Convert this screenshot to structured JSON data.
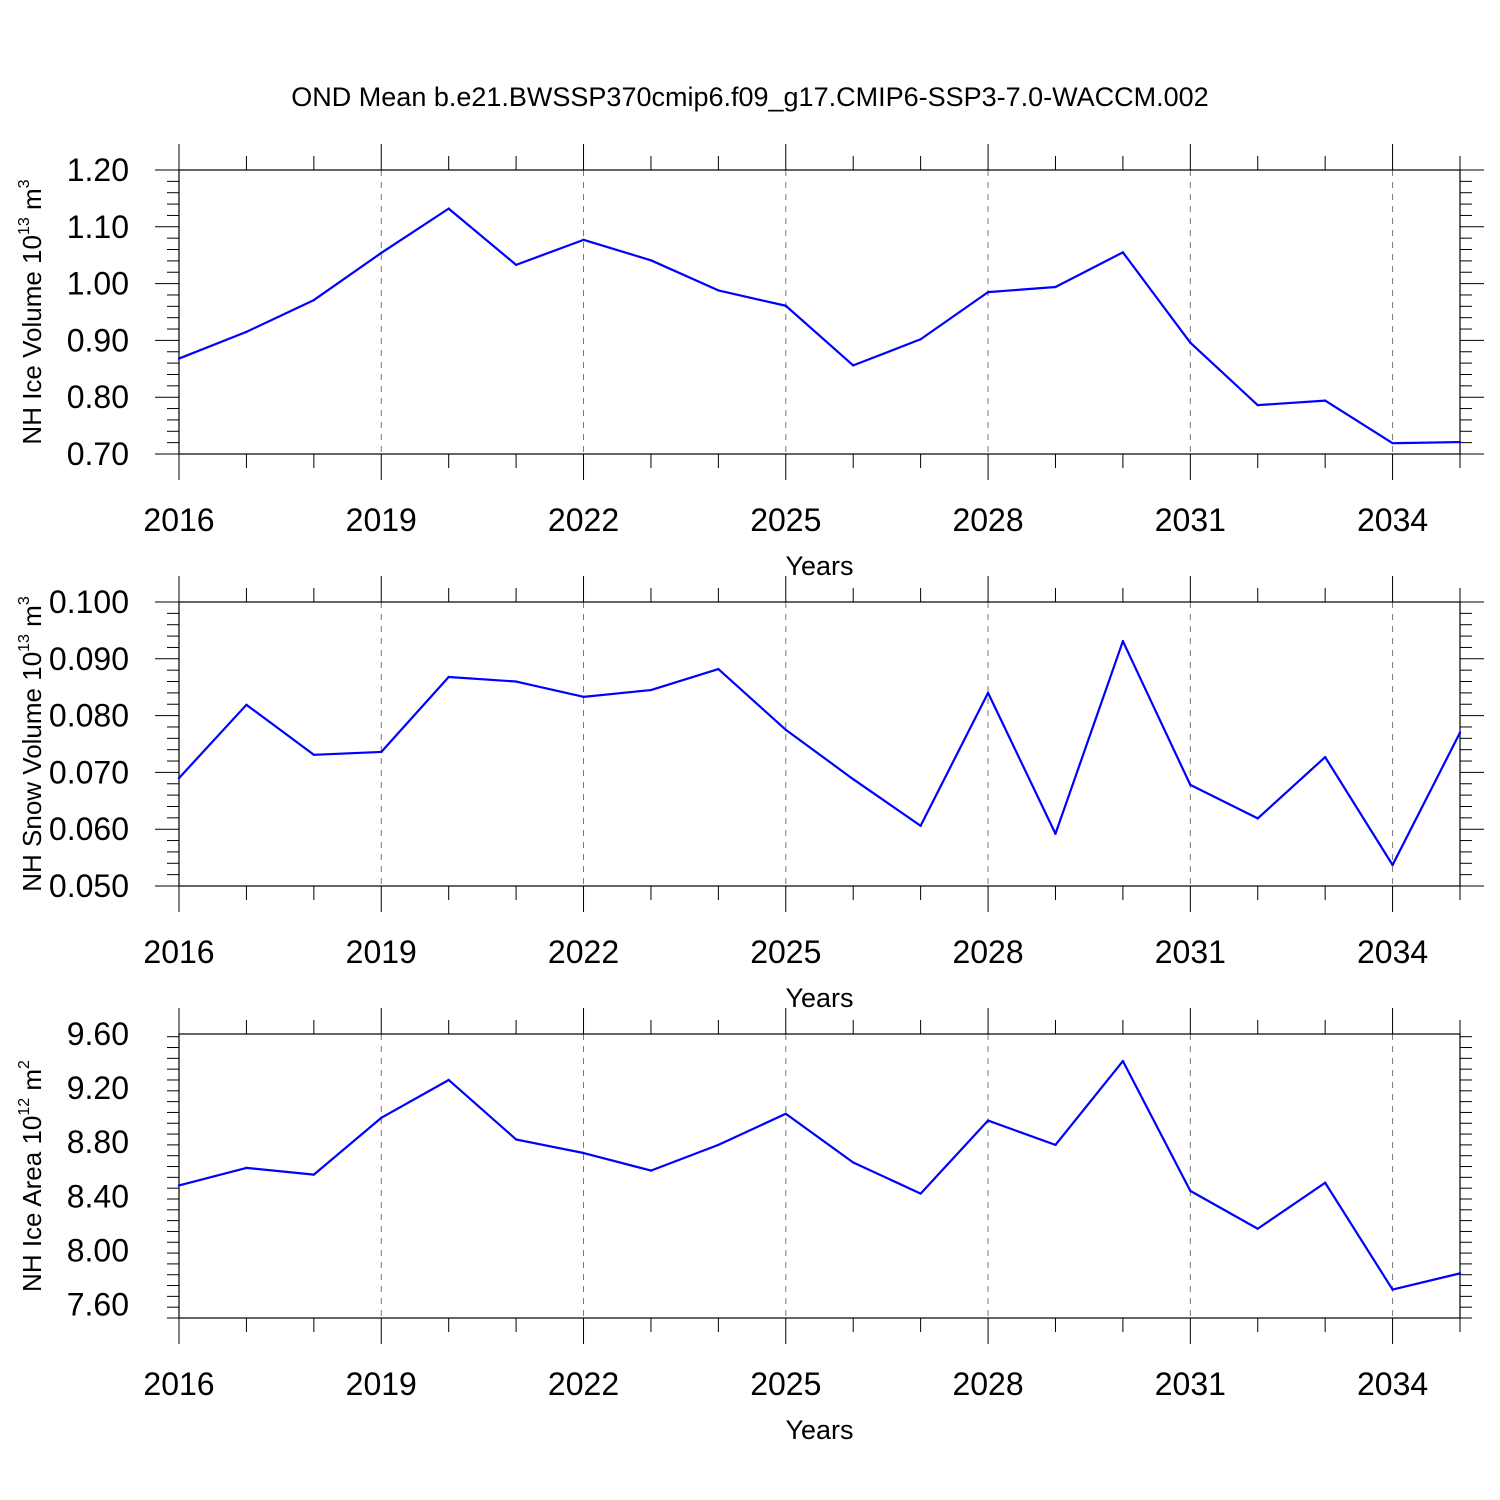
{
  "title": "OND Mean b.e21.BWSSP370cmip6.f09_g17.CMIP6-SSP3-7.0-WACCM.002",
  "colors": {
    "line": "#0000ff",
    "axis": "#000000",
    "grid": "#777777"
  },
  "chart_data": [
    {
      "type": "line",
      "xlabel": "Years",
      "ylabel": {
        "text": "NH Ice Volume 10",
        "exp": "13",
        "unit": " m",
        "unit_exp": "3"
      },
      "xlim": [
        2016,
        2035
      ],
      "ylim": [
        0.7,
        1.2
      ],
      "x_ticks": [
        "2016",
        "2019",
        "2022",
        "2025",
        "2028",
        "2031",
        "2034"
      ],
      "y_ticks": [
        "0.70",
        "0.80",
        "0.90",
        "1.00",
        "1.10",
        "1.20"
      ],
      "grid": "vertical dashed at major x ticks",
      "x": [
        2016,
        2017,
        2018,
        2019,
        2020,
        2021,
        2022,
        2023,
        2024,
        2025,
        2026,
        2027,
        2028,
        2029,
        2030,
        2031,
        2032,
        2033,
        2034,
        2035
      ],
      "values": [
        0.868,
        0.915,
        0.971,
        1.054,
        1.132,
        1.033,
        1.077,
        1.041,
        0.988,
        0.961,
        0.856,
        0.902,
        0.985,
        0.994,
        1.055,
        0.896,
        0.786,
        0.794,
        0.719,
        0.721
      ]
    },
    {
      "type": "line",
      "xlabel": "Years",
      "ylabel": {
        "text": "NH Snow Volume 10",
        "exp": "13",
        "unit": " m",
        "unit_exp": "3"
      },
      "xlim": [
        2016,
        2035
      ],
      "ylim": [
        0.05,
        0.1
      ],
      "x_ticks": [
        "2016",
        "2019",
        "2022",
        "2025",
        "2028",
        "2031",
        "2034"
      ],
      "y_ticks": [
        "0.050",
        "0.060",
        "0.070",
        "0.080",
        "0.090",
        "0.100"
      ],
      "grid": "vertical dashed at major x ticks",
      "x": [
        2016,
        2017,
        2018,
        2019,
        2020,
        2021,
        2022,
        2023,
        2024,
        2025,
        2026,
        2027,
        2028,
        2029,
        2030,
        2031,
        2032,
        2033,
        2034,
        2035
      ],
      "values": [
        0.069,
        0.0819,
        0.0731,
        0.0736,
        0.0868,
        0.086,
        0.0833,
        0.0845,
        0.0882,
        0.0775,
        0.0688,
        0.0606,
        0.084,
        0.0592,
        0.0931,
        0.0678,
        0.0619,
        0.0727,
        0.0537,
        0.077
      ]
    },
    {
      "type": "line",
      "xlabel": "Years",
      "ylabel": {
        "text": "NH Ice Area 10",
        "exp": "12",
        "unit": " m",
        "unit_exp": "2"
      },
      "xlim": [
        2016,
        2035
      ],
      "ylim": [
        7.5,
        9.6
      ],
      "x_ticks": [
        "2016",
        "2019",
        "2022",
        "2025",
        "2028",
        "2031",
        "2034"
      ],
      "y_ticks": [
        "7.60",
        "8.00",
        "8.40",
        "8.80",
        "9.20",
        "9.60"
      ],
      "grid": "vertical dashed at major x ticks",
      "x": [
        2016,
        2017,
        2018,
        2019,
        2020,
        2021,
        2022,
        2023,
        2024,
        2025,
        2026,
        2027,
        2028,
        2029,
        2030,
        2031,
        2032,
        2033,
        2034,
        2035
      ],
      "values": [
        8.48,
        8.61,
        8.56,
        8.98,
        9.26,
        8.82,
        8.72,
        8.59,
        8.78,
        9.01,
        8.65,
        8.42,
        8.96,
        8.78,
        9.4,
        8.44,
        8.16,
        8.5,
        7.71,
        7.83
      ]
    }
  ]
}
